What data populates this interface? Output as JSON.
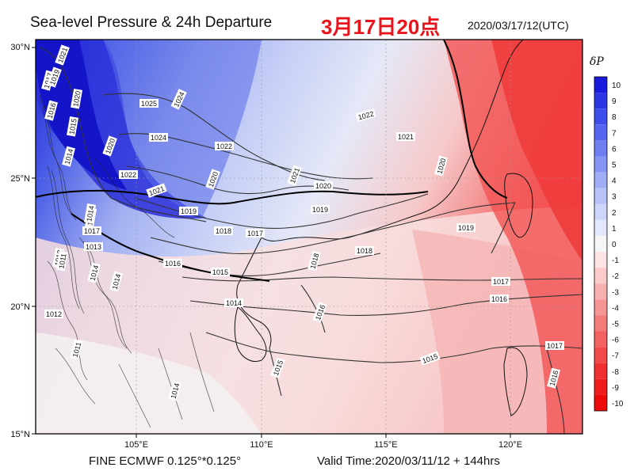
{
  "header": {
    "title": "Sea-level Pressure & 24h Departure",
    "title_cn": "3月17日20点",
    "date": "2020/03/17/12(UTC)"
  },
  "footer": {
    "model": "FINE ECMWF 0.125°*0.125°",
    "valid_time": "Valid Time:2020/03/11/12 + 144hrs"
  },
  "axes": {
    "lat_labels": [
      "30°N",
      "25°N",
      "20°N",
      "15°N"
    ],
    "lon_labels": [
      "105°E",
      "110°E",
      "115°E",
      "120°E"
    ]
  },
  "colorbar": {
    "label": "δP",
    "levels": [
      "10",
      "9",
      "8",
      "7",
      "6",
      "5",
      "4",
      "3",
      "2",
      "1",
      "0",
      "-1",
      "-2",
      "-3",
      "-4",
      "-5",
      "-6",
      "-7",
      "-8",
      "-9",
      "-10"
    ],
    "colors": [
      "#1a1adc",
      "#2b35e4",
      "#3d4de9",
      "#5565ee",
      "#6e7ef1",
      "#8796f4",
      "#a0aef7",
      "#b7c2f9",
      "#cdd5fb",
      "#e3e8fd",
      "#f6f6f6",
      "#fde4e4",
      "#fbcaca",
      "#f9b0b0",
      "#f79595",
      "#f57b7b",
      "#f36161",
      "#f24848",
      "#f03030",
      "#ee1c1c",
      "#ec0a0a"
    ]
  },
  "isobar_labels": [
    "1021",
    "1017",
    "1016",
    "1015",
    "1014",
    "1020",
    "1025",
    "1024",
    "1022",
    "1024",
    "1022",
    "1021",
    "1019",
    "1020",
    "1021",
    "1020",
    "1019",
    "1018",
    "1017",
    "1022",
    "1021",
    "1020",
    "1016",
    "1015",
    "1014",
    "1013",
    "1013",
    "1014",
    "1012",
    "1012",
    "1014",
    "1011",
    "1011",
    "1016",
    "1015",
    "1014",
    "1015",
    "1018",
    "1017",
    "1016",
    "1019",
    "1017",
    "1016",
    "1017",
    "1018",
    "1014",
    "1019",
    "1020"
  ]
}
